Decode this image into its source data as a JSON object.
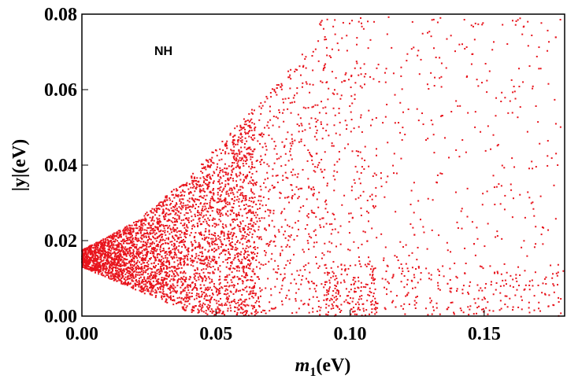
{
  "chart_data": {
    "type": "scatter",
    "title": "",
    "xlabel": {
      "main": "m",
      "sub": "1",
      "rest": "(eV)"
    },
    "ylabel": "|y|(eV)",
    "xlim": [
      0.0,
      0.18
    ],
    "ylim": [
      0.0,
      0.08
    ],
    "x_ticks": [
      "0.00",
      "0.05",
      "0.10",
      "0.15"
    ],
    "x_tick_values": [
      0.0,
      0.05,
      0.1,
      0.15
    ],
    "y_ticks": [
      "0.00",
      "0.02",
      "0.04",
      "0.06",
      "0.08"
    ],
    "y_tick_values": [
      0.0,
      0.02,
      0.04,
      0.06,
      0.08
    ],
    "grid": false,
    "annotation": "NH",
    "point_color": "#e8141c",
    "series": [
      {
        "points_description_envelope": {
          "upper_bound": [
            [
              0.0,
              0.0175
            ],
            [
              0.02,
              0.025
            ],
            [
              0.04,
              0.037
            ],
            [
              0.06,
              0.052
            ],
            [
              0.08,
              0.068
            ],
            [
              0.09,
              0.079
            ],
            [
              0.18,
              0.08
            ]
          ],
          "lower_bound": [
            [
              0.0,
              0.013
            ],
            [
              0.02,
              0.007
            ],
            [
              0.04,
              0.001
            ],
            [
              0.05,
              0.0
            ],
            [
              0.18,
              0.0
            ]
          ]
        }
      }
    ]
  }
}
